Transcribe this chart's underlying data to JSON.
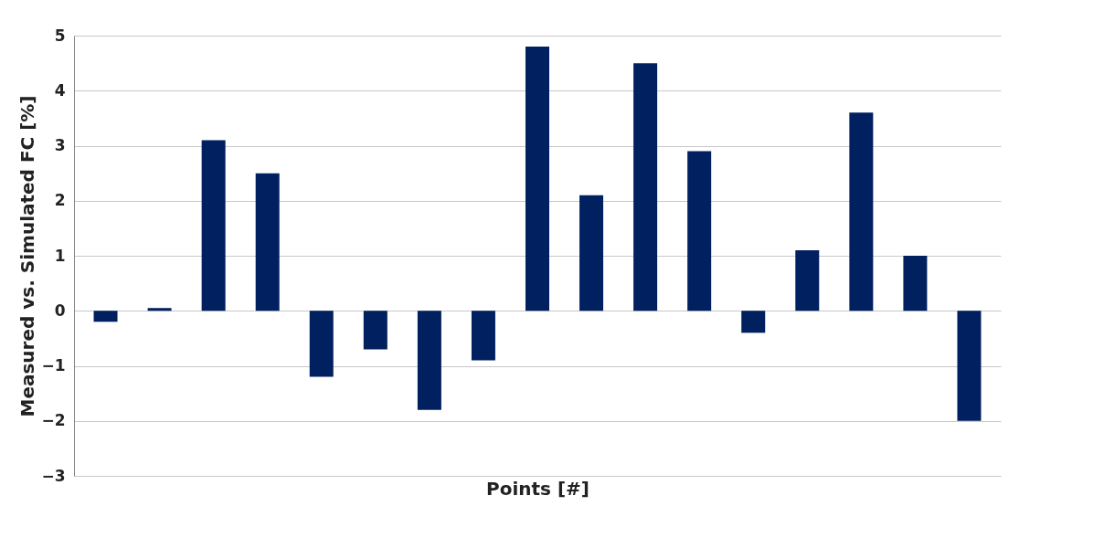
{
  "chart_data": {
    "type": "bar",
    "xlabel": "Points [#]",
    "ylabel": "Measured vs. Simulated FC [%]",
    "categories": [
      null,
      null,
      null,
      null,
      null,
      null,
      null,
      null,
      null,
      null,
      null,
      null,
      null,
      null,
      null,
      null,
      null
    ],
    "values": [
      -0.2,
      0.05,
      3.1,
      2.5,
      -1.2,
      -0.7,
      -1.8,
      -0.9,
      4.8,
      2.1,
      4.5,
      2.9,
      -0.4,
      1.1,
      3.6,
      1.0,
      -2.0
    ],
    "color": "#002060",
    "ylim": [
      -3,
      5
    ],
    "yticks": [
      -3,
      -2,
      -1,
      0,
      1,
      2,
      3,
      4,
      5
    ],
    "grid": "y"
  }
}
